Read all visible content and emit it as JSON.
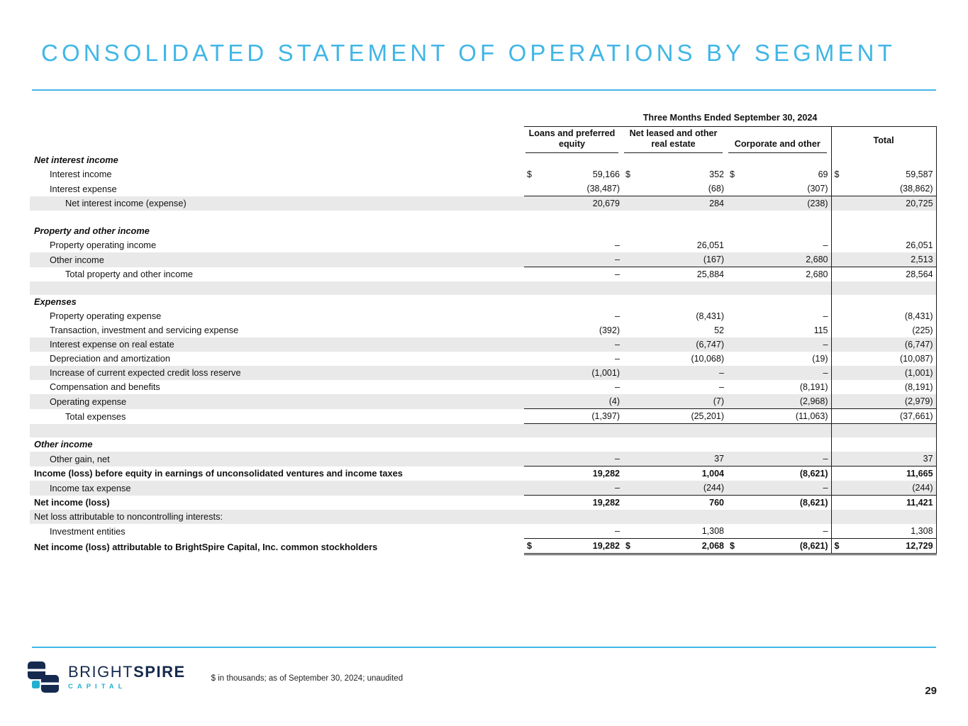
{
  "title": "CONSOLIDATED STATEMENT OF OPERATIONS BY SEGMENT",
  "colors": {
    "accent": "#41B6E6",
    "navy": "#152A4E",
    "teal": "#23B0CF",
    "row_shade": "#E9E9E9",
    "line": "#1a1a1a"
  },
  "table": {
    "period_header": "Three Months Ended September 30, 2024",
    "columns": [
      "Loans and preferred equity",
      "Net leased and other real estate",
      "Corporate and other",
      "Total"
    ],
    "rows": [
      {
        "type": "section",
        "label": "Net interest income"
      },
      {
        "type": "data",
        "label": "Interest income",
        "indent": 1,
        "dollar": true,
        "values": [
          "59,166",
          "352",
          "69",
          "59,587"
        ]
      },
      {
        "type": "data",
        "label": "Interest expense",
        "indent": 1,
        "values": [
          "(38,487)",
          "(68)",
          "(307)",
          "(38,862)"
        ],
        "rule_below": true
      },
      {
        "type": "data",
        "label": "Net interest income (expense)",
        "indent": 2,
        "values": [
          "20,679",
          "284",
          "(238)",
          "20,725"
        ],
        "shaded": true
      },
      {
        "type": "blank"
      },
      {
        "type": "section",
        "label": "Property and other income"
      },
      {
        "type": "data",
        "label": "Property operating income",
        "indent": 1,
        "values": [
          "–",
          "26,051",
          "–",
          "26,051"
        ]
      },
      {
        "type": "data",
        "label": "Other income",
        "indent": 1,
        "values": [
          "–",
          "(167)",
          "2,680",
          "2,513"
        ],
        "shaded": true,
        "rule_below": true
      },
      {
        "type": "data",
        "label": "Total property and other income",
        "indent": 2,
        "values": [
          "–",
          "25,884",
          "2,680",
          "28,564"
        ]
      },
      {
        "type": "blank",
        "shaded": true
      },
      {
        "type": "section",
        "label": "Expenses"
      },
      {
        "type": "data",
        "label": "Property operating expense",
        "indent": 1,
        "values": [
          "–",
          "(8,431)",
          "–",
          "(8,431)"
        ]
      },
      {
        "type": "data",
        "label": "Transaction, investment and servicing expense",
        "indent": 1,
        "values": [
          "(392)",
          "52",
          "115",
          "(225)"
        ]
      },
      {
        "type": "data",
        "label": "Interest expense on real estate",
        "indent": 1,
        "values": [
          "–",
          "(6,747)",
          "–",
          "(6,747)"
        ],
        "shaded": true
      },
      {
        "type": "data",
        "label": "Depreciation and amortization",
        "indent": 1,
        "values": [
          "–",
          "(10,068)",
          "(19)",
          "(10,087)"
        ]
      },
      {
        "type": "data",
        "label": "Increase of current expected credit loss reserve",
        "indent": 1,
        "values": [
          "(1,001)",
          "–",
          "–",
          "(1,001)"
        ],
        "shaded": true
      },
      {
        "type": "data",
        "label": "Compensation and benefits",
        "indent": 1,
        "values": [
          "–",
          "–",
          "(8,191)",
          "(8,191)"
        ]
      },
      {
        "type": "data",
        "label": "Operating expense",
        "indent": 1,
        "values": [
          "(4)",
          "(7)",
          "(2,968)",
          "(2,979)"
        ],
        "shaded": true,
        "rule_below": true
      },
      {
        "type": "data",
        "label": "Total expenses",
        "indent": 2,
        "values": [
          "(1,397)",
          "(25,201)",
          "(11,063)",
          "(37,661)"
        ],
        "rule_below": true
      },
      {
        "type": "blank",
        "shaded": true
      },
      {
        "type": "section",
        "label": "Other income"
      },
      {
        "type": "data",
        "label": "Other gain, net",
        "indent": 1,
        "values": [
          "–",
          "37",
          "–",
          "37"
        ],
        "shaded": true,
        "rule_below": true
      },
      {
        "type": "data",
        "label": "Income (loss) before equity in earnings of unconsolidated ventures and income taxes",
        "indent": 0,
        "bold": true,
        "values": [
          "19,282",
          "1,004",
          "(8,621)",
          "11,665"
        ]
      },
      {
        "type": "data",
        "label": "Income tax expense",
        "indent": 1,
        "values": [
          "–",
          "(244)",
          "–",
          "(244)"
        ],
        "shaded": true,
        "rule_below": true
      },
      {
        "type": "data",
        "label": "Net income (loss)",
        "indent": 0,
        "bold": true,
        "values": [
          "19,282",
          "760",
          "(8,621)",
          "11,421"
        ]
      },
      {
        "type": "data",
        "label": "Net loss attributable to noncontrolling interests:",
        "indent": 0,
        "values": [
          "",
          "",
          "",
          ""
        ],
        "shaded": true
      },
      {
        "type": "data",
        "label": "Investment entities",
        "indent": 1,
        "values": [
          "–",
          "1,308",
          "–",
          "1,308"
        ],
        "rule_below": true
      },
      {
        "type": "data",
        "label": "Net income (loss) attributable to BrightSpire Capital, Inc. common stockholders",
        "indent": 0,
        "bold": true,
        "dollar": true,
        "values": [
          "19,282",
          "2,068",
          "(8,621)",
          "12,729"
        ],
        "double_rule": true
      }
    ]
  },
  "footer": {
    "note": "$ in thousands; as of September 30, 2024; unaudited",
    "page": "29",
    "logo": {
      "word1": "BRIGHT",
      "word2": "SPIRE",
      "subtitle": "CAPITAL"
    }
  }
}
